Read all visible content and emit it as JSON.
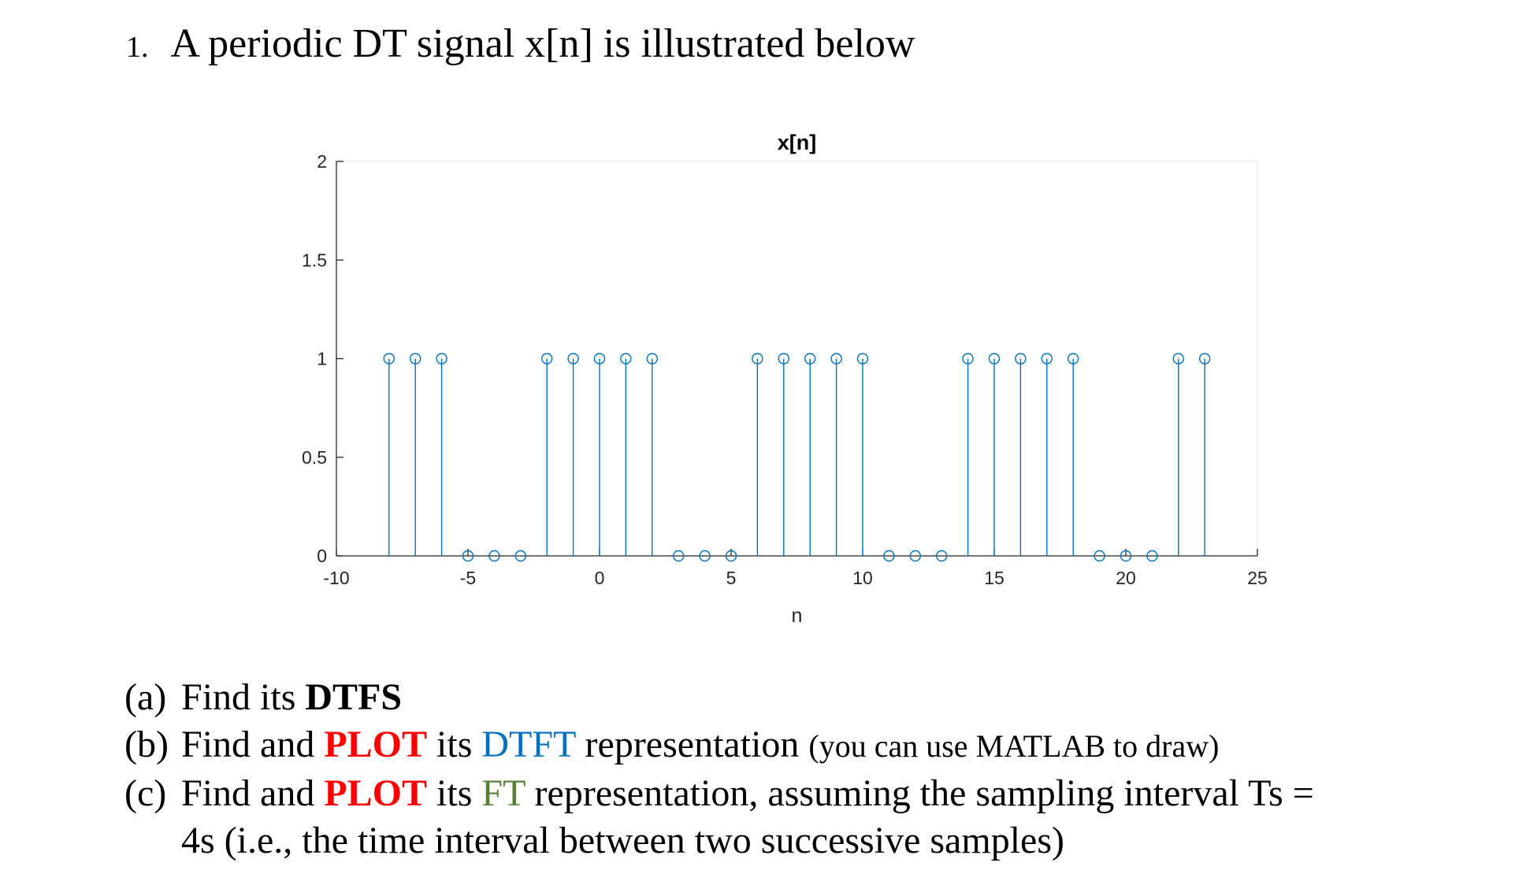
{
  "heading": {
    "number": "1.",
    "text": "A periodic DT signal x[n] is illustrated below"
  },
  "chart_data": {
    "type": "stem",
    "title": "x[n]",
    "xlabel": "n",
    "ylabel": "",
    "xlim": [
      -10,
      25
    ],
    "ylim": [
      0,
      2
    ],
    "xticks": [
      -10,
      -5,
      0,
      5,
      10,
      15,
      20,
      25
    ],
    "xtick_labels": [
      "-10",
      "-5",
      "0",
      "5",
      "10",
      "15",
      "20",
      "25"
    ],
    "yticks": [
      0,
      0.5,
      1,
      1.5,
      2
    ],
    "ytick_labels": [
      "0",
      "0.5",
      "1",
      "1.5",
      "2"
    ],
    "grid": true,
    "color": "#0072bd",
    "x": [
      -8,
      -7,
      -6,
      -5,
      -4,
      -3,
      -2,
      -1,
      0,
      1,
      2,
      3,
      4,
      5,
      6,
      7,
      8,
      9,
      10,
      11,
      12,
      13,
      14,
      15,
      16,
      17,
      18,
      19,
      20,
      21,
      22,
      23
    ],
    "y": [
      1,
      1,
      1,
      0,
      0,
      0,
      1,
      1,
      1,
      1,
      1,
      0,
      0,
      0,
      1,
      1,
      1,
      1,
      1,
      0,
      0,
      0,
      1,
      1,
      1,
      1,
      1,
      0,
      0,
      0,
      1,
      1
    ]
  },
  "parts": {
    "a": {
      "label": "(a)",
      "text": "Find its ",
      "bold": "DTFS"
    },
    "b": {
      "label": "(b)",
      "t1": "Find and ",
      "plot": "PLOT",
      "t2": " its ",
      "dtft": "DTFT",
      "t3": " representation ",
      "note": "(you can use MATLAB to draw)"
    },
    "c": {
      "label": "(c)",
      "t1": "Find and ",
      "plot": "PLOT",
      "t2": " its ",
      "ft": "FT",
      "t3": " representation, assuming the sampling interval Ts =",
      "line2": "4s (i.e., the time interval between two successive samples)"
    }
  }
}
